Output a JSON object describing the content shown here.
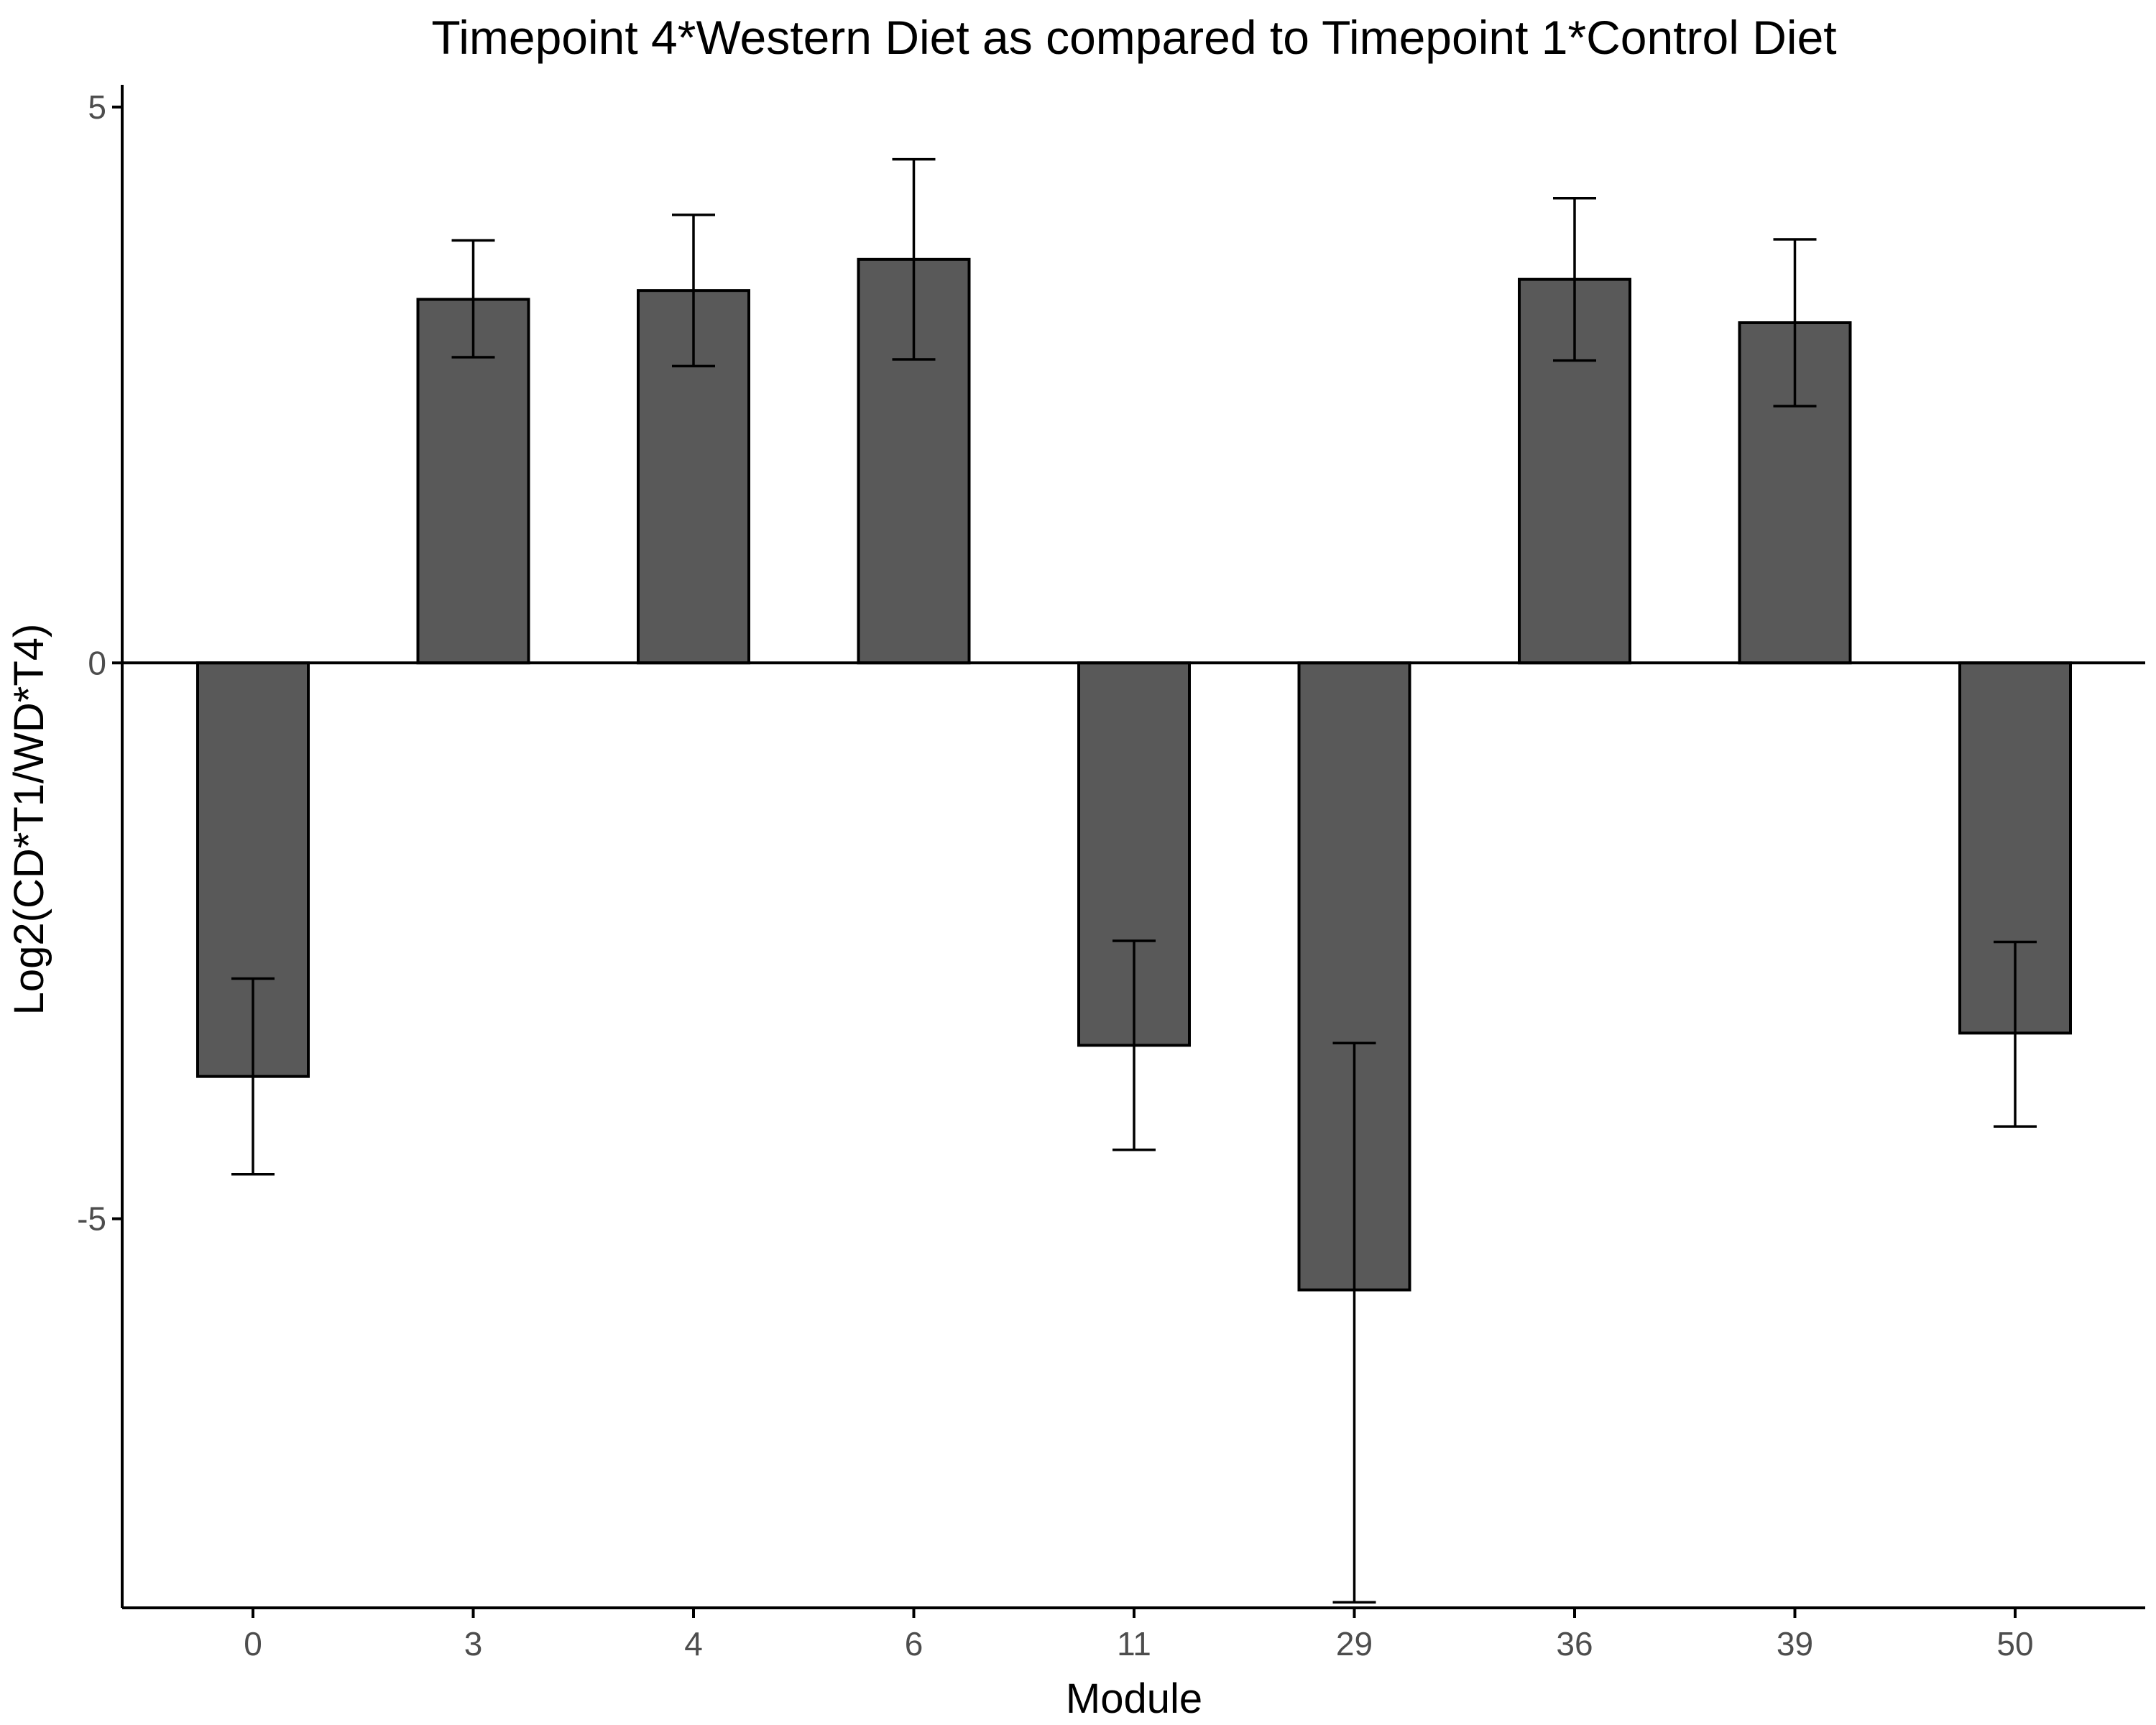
{
  "chart_data": {
    "type": "bar",
    "title": "Timepoint 4*Western Diet as compared to Timepoint 1*Control Diet",
    "xlabel": "Module",
    "ylabel": "Log2(CD*T1/WD*T4)",
    "categories": [
      "0",
      "3",
      "4",
      "6",
      "11",
      "29",
      "36",
      "39",
      "50"
    ],
    "values": [
      -3.72,
      3.27,
      3.35,
      3.63,
      -3.44,
      -5.64,
      3.45,
      3.06,
      -3.33
    ],
    "error_low": [
      -4.6,
      2.75,
      2.67,
      2.73,
      -4.38,
      -8.45,
      2.72,
      2.31,
      -4.17
    ],
    "error_high": [
      -2.84,
      3.8,
      4.03,
      4.53,
      -2.5,
      -3.42,
      4.18,
      3.81,
      -2.51
    ],
    "yticks": [
      -5,
      0,
      5
    ],
    "ytick_labels": [
      "-5",
      "0",
      "5"
    ],
    "ylim": [
      -8.5,
      5.2
    ],
    "grid": false,
    "legend": "none",
    "colors": {
      "bar_fill": "#595959",
      "bar_stroke": "#000000",
      "errorbar": "#000000",
      "axis": "#000000"
    }
  }
}
